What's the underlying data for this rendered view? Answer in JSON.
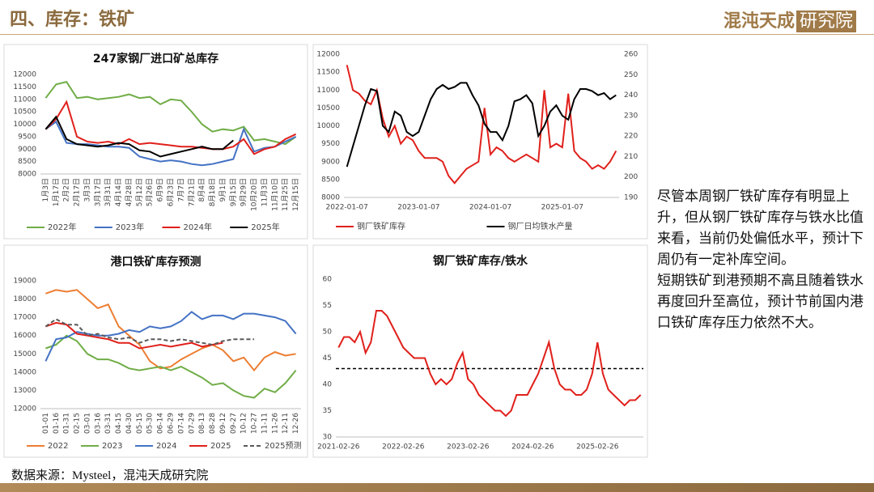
{
  "header": {
    "title": "四、库存：铁矿",
    "logo_main": "混沌天成",
    "logo_sub": "研究院"
  },
  "chart_data": [
    {
      "type": "line",
      "title": "247家钢厂进口矿总库存",
      "categories": [
        "1月3日",
        "1月17日",
        "2月2日",
        "2月17日",
        "3月3日",
        "3月17日",
        "3月31日",
        "4月14日",
        "4月28日",
        "5月12日",
        "5月26日",
        "6月9日",
        "6月23日",
        "7月7日",
        "7月21日",
        "8月4日",
        "8月18日",
        "9月1日",
        "9月15日",
        "9月29日",
        "10月20日",
        "11月3日",
        "11月10日",
        "11月25日",
        "12月15日"
      ],
      "series": [
        {
          "name": "2022年",
          "color": "#70ad47",
          "values": [
            11050,
            11600,
            11700,
            11050,
            11100,
            11000,
            11050,
            11100,
            11200,
            11050,
            11100,
            10800,
            11000,
            10950,
            10500,
            10000,
            9700,
            9800,
            9750,
            9900,
            9350,
            9400,
            9300,
            9200,
            9500
          ]
        },
        {
          "name": "2023年",
          "color": "#4472c4",
          "values": [
            9800,
            10100,
            9250,
            9200,
            9200,
            9150,
            9100,
            9100,
            9050,
            8700,
            8600,
            8500,
            8550,
            8500,
            8400,
            8350,
            8400,
            8500,
            8600,
            9800,
            8900,
            9050,
            9100,
            9300,
            9500
          ]
        },
        {
          "name": "2024年",
          "color": "#e0201b",
          "values": [
            9800,
            10200,
            10900,
            9500,
            9300,
            9250,
            9300,
            9200,
            9400,
            9200,
            9250,
            9200,
            9150,
            9100,
            9100,
            9050,
            9000,
            9000,
            9100,
            9400,
            8800,
            9000,
            9100,
            9400,
            9600
          ]
        },
        {
          "name": "2025年",
          "color": "#000000",
          "values": [
            9800,
            10300,
            9400,
            9200,
            9150,
            9100,
            9150,
            9250,
            9200,
            8950,
            8900,
            8700,
            8800,
            8900,
            9000,
            9100,
            9000,
            9000,
            9350,
            null,
            null,
            null,
            null,
            null,
            null
          ]
        }
      ],
      "ylim": [
        8000,
        12000
      ],
      "yticks": [
        8000,
        8500,
        9000,
        9500,
        10000,
        10500,
        11000,
        11500,
        12000
      ],
      "legend": "bottom"
    },
    {
      "type": "line",
      "categories": [
        "2022-01-07",
        null,
        null,
        null,
        null,
        null,
        null,
        null,
        null,
        null,
        null,
        null,
        "2023-01-07",
        null,
        null,
        null,
        null,
        null,
        null,
        null,
        null,
        null,
        null,
        null,
        "2024-01-07",
        null,
        null,
        null,
        null,
        null,
        null,
        null,
        null,
        null,
        null,
        null,
        "2025-01-07",
        null,
        null,
        null,
        null,
        null,
        null,
        null,
        null,
        null
      ],
      "series": [
        {
          "name": "钢厂铁矿库存",
          "color": "#e0201b",
          "values": [
            11700,
            11000,
            10900,
            10700,
            10600,
            11000,
            10200,
            9700,
            10000,
            9500,
            9700,
            9600,
            9300,
            9100,
            9100,
            9100,
            9000,
            8600,
            8400,
            8600,
            8800,
            8900,
            9000,
            10500,
            9200,
            9400,
            9300,
            9100,
            9000,
            9100,
            9200,
            9100,
            9000,
            11000,
            9400,
            9500,
            9400,
            10900,
            9300,
            9100,
            9000,
            8800,
            8900,
            8800,
            9000,
            9300
          ]
        },
        {
          "name": "钢厂日均铁水产量",
          "color": "#000000",
          "axis": "y2",
          "values": [
            205,
            215,
            225,
            235,
            243,
            242,
            225,
            222,
            232,
            230,
            222,
            220,
            222,
            230,
            238,
            243,
            245,
            243,
            244,
            246,
            246,
            240,
            235,
            226,
            222,
            222,
            218,
            225,
            237,
            238,
            240,
            236,
            220,
            225,
            232,
            235,
            230,
            228,
            238,
            243,
            243,
            242,
            240,
            241,
            238,
            240
          ]
        }
      ],
      "ylim": [
        8000,
        12000
      ],
      "yticks": [
        8000,
        8500,
        9000,
        9500,
        10000,
        10500,
        11000,
        11500,
        12000
      ],
      "y2lim": [
        190,
        260
      ],
      "y2ticks": [
        190,
        200,
        210,
        220,
        230,
        240,
        250,
        260
      ],
      "legend": "bottom"
    },
    {
      "type": "line",
      "title": "港口铁矿库存预测",
      "categories": [
        "01-01",
        "01-16",
        "01-31",
        "02-15",
        "03-01",
        "03-16",
        "03-31",
        "04-15",
        "04-30",
        "05-15",
        "05-30",
        "06-14",
        "06-29",
        "07-14",
        "07-29",
        "08-13",
        "08-28",
        "09-12",
        "09-27",
        "10-12",
        "10-27",
        "11-11",
        "11-26",
        "12-11",
        "12-26"
      ],
      "series": [
        {
          "name": "2022",
          "color": "#ed7d31",
          "values": [
            18300,
            18500,
            18400,
            18500,
            18000,
            17500,
            17700,
            16500,
            16000,
            15500,
            14600,
            14200,
            14300,
            14700,
            15000,
            15300,
            15500,
            15200,
            14600,
            14800,
            14100,
            14800,
            15100,
            14900,
            15000
          ]
        },
        {
          "name": "2023",
          "color": "#70ad47",
          "values": [
            15300,
            15500,
            16000,
            15700,
            15000,
            14700,
            14700,
            14500,
            14200,
            14100,
            14200,
            14300,
            14100,
            14300,
            14000,
            13700,
            13300,
            13400,
            13000,
            12700,
            12600,
            13100,
            12900,
            13400,
            14100
          ]
        },
        {
          "name": "2024",
          "color": "#4472c4",
          "values": [
            14600,
            15800,
            15900,
            16200,
            16100,
            16000,
            16000,
            16100,
            16300,
            16200,
            16500,
            16400,
            16500,
            16800,
            17300,
            16900,
            17100,
            17100,
            16900,
            17200,
            17200,
            17100,
            17000,
            16800,
            16100
          ]
        },
        {
          "name": "2025",
          "color": "#e0201b",
          "values": [
            16500,
            16700,
            16600,
            16100,
            16000,
            15900,
            15800,
            15600,
            15600,
            15300,
            15400,
            15500,
            15400,
            15500,
            15600,
            15400,
            15500,
            15600,
            null,
            null,
            null,
            null,
            null,
            null,
            null
          ]
        },
        {
          "name": "2025预测",
          "color": "#595959",
          "dash": true,
          "values": [
            16500,
            16900,
            16600,
            16600,
            16000,
            16100,
            15900,
            15800,
            15900,
            15600,
            15800,
            15800,
            15700,
            15800,
            15700,
            15600,
            15500,
            15700,
            15800,
            15800,
            15800,
            null,
            null,
            null,
            null
          ]
        }
      ],
      "ylim": [
        12000,
        19000
      ],
      "yticks": [
        12000,
        13000,
        14000,
        15000,
        16000,
        17000,
        18000,
        19000
      ],
      "legend": "bottom"
    },
    {
      "type": "line",
      "title": "钢厂铁矿库存/铁水",
      "categories": [
        "2021-02-26",
        null,
        null,
        null,
        null,
        null,
        null,
        null,
        null,
        null,
        null,
        null,
        "2022-02-26",
        null,
        null,
        null,
        null,
        null,
        null,
        null,
        null,
        null,
        null,
        null,
        "2023-02-26",
        null,
        null,
        null,
        null,
        null,
        null,
        null,
        null,
        null,
        null,
        null,
        "2024-02-26",
        null,
        null,
        null,
        null,
        null,
        null,
        null,
        null,
        null,
        null,
        null,
        "2025-02-26",
        null,
        null,
        null,
        null,
        null,
        null,
        null,
        null
      ],
      "series": [
        {
          "color": "#e0201b",
          "values": [
            47,
            49,
            49,
            48,
            50,
            46,
            48,
            54,
            54,
            53,
            51,
            49,
            47,
            46,
            45,
            45,
            45,
            42,
            40,
            41,
            40,
            41,
            44,
            46,
            41,
            40,
            38,
            37,
            36,
            35,
            35,
            34,
            35,
            38,
            38,
            38,
            40,
            42,
            45,
            48,
            43,
            40,
            39,
            39,
            38,
            38,
            39,
            42,
            48,
            42,
            39,
            38,
            37,
            36,
            37,
            37,
            38
          ]
        }
      ],
      "reference_line": 43,
      "ylim": [
        30,
        60
      ],
      "yticks": [
        30,
        35,
        40,
        45,
        50,
        55,
        60
      ]
    }
  ],
  "commentary": [
    "尽管本周钢厂铁矿库存有明显上升，但从钢厂铁矿库存与铁水比值来看，当前仍处偏低水平，预计下周仍有一定补库空间。",
    "短期铁矿到港预期不高且随着铁水再度回升至高位，预计节前国内港口铁矿库存压力依然不大。"
  ],
  "source": "数据来源：Mysteel，混沌天成研究院"
}
